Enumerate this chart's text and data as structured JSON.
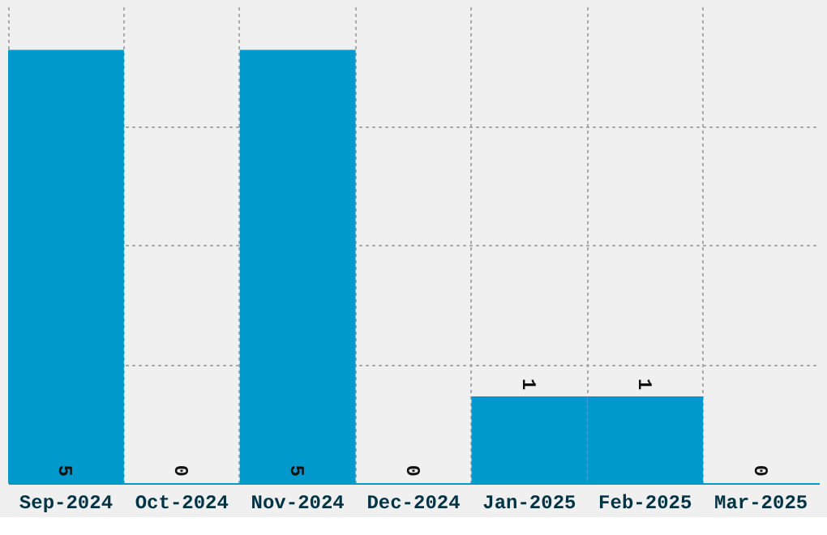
{
  "chart_data": {
    "type": "bar",
    "categories": [
      "Sep-2024",
      "Oct-2024",
      "Nov-2024",
      "Dec-2024",
      "Jan-2025",
      "Feb-2025",
      "Mar-2025"
    ],
    "values": [
      5,
      0,
      5,
      0,
      1,
      1,
      0
    ],
    "color": "#0099cc",
    "data_labels": true,
    "grid": true,
    "ylim": [
      0,
      5.5
    ],
    "yticks": [
      {
        "value": 1.375,
        "label": null
      },
      {
        "value": 2.75,
        "label": null
      },
      {
        "value": 4.125,
        "label": null
      }
    ],
    "tick_labels": "x"
  }
}
